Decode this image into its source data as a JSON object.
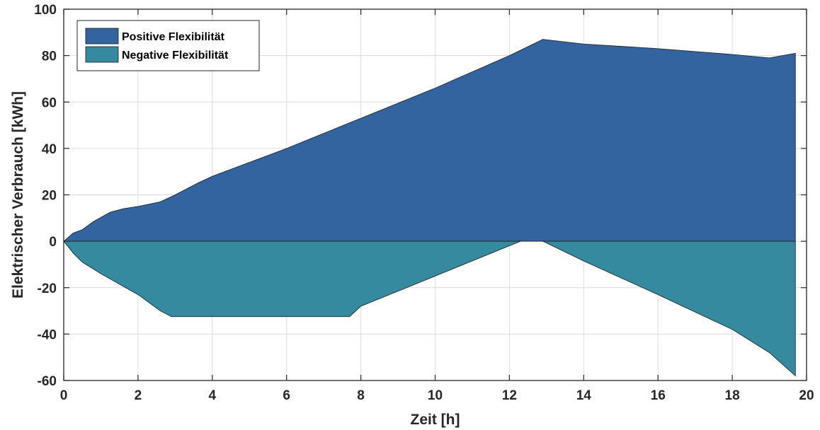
{
  "chart_data": {
    "type": "area",
    "xlabel": "Zeit [h]",
    "ylabel": "Elektrischer Verbrauch [kWh]",
    "xlim": [
      0,
      20
    ],
    "ylim": [
      -60,
      100
    ],
    "xticks": [
      0,
      2,
      4,
      6,
      8,
      10,
      12,
      14,
      16,
      18,
      20
    ],
    "yticks": [
      -60,
      -40,
      -20,
      0,
      20,
      40,
      60,
      80,
      100
    ],
    "grid": true,
    "legend_position": "top-left",
    "series": [
      {
        "name": "Positive Flexibilität",
        "color": "#3364a0",
        "x": [
          0,
          0.25,
          0.5,
          0.8,
          1.25,
          1.6,
          2.0,
          2.6,
          3.0,
          3.6,
          4.0,
          6.0,
          8.0,
          10.0,
          12.0,
          12.9,
          14.0,
          16.0,
          18.0,
          19.0,
          19.7
        ],
        "values": [
          0,
          3.5,
          5,
          8.5,
          12.5,
          14,
          15,
          17,
          20,
          25,
          28,
          40,
          53,
          66,
          80,
          87,
          85,
          83,
          80.5,
          79,
          81
        ]
      },
      {
        "name": "Negative Flexibilität",
        "color": "#368aa0",
        "x": [
          0,
          0.25,
          0.5,
          1.0,
          2.0,
          2.6,
          2.9,
          4.0,
          6.0,
          7.7,
          8.0,
          10.0,
          12.3,
          12.9,
          14.0,
          16.0,
          18.0,
          19.0,
          19.7
        ],
        "values": [
          0,
          -5,
          -9,
          -14,
          -23,
          -30,
          -32.5,
          -32.5,
          -32.5,
          -32.5,
          -28,
          -15,
          0,
          0,
          -8.5,
          -23,
          -38,
          -48,
          -58
        ]
      }
    ]
  }
}
